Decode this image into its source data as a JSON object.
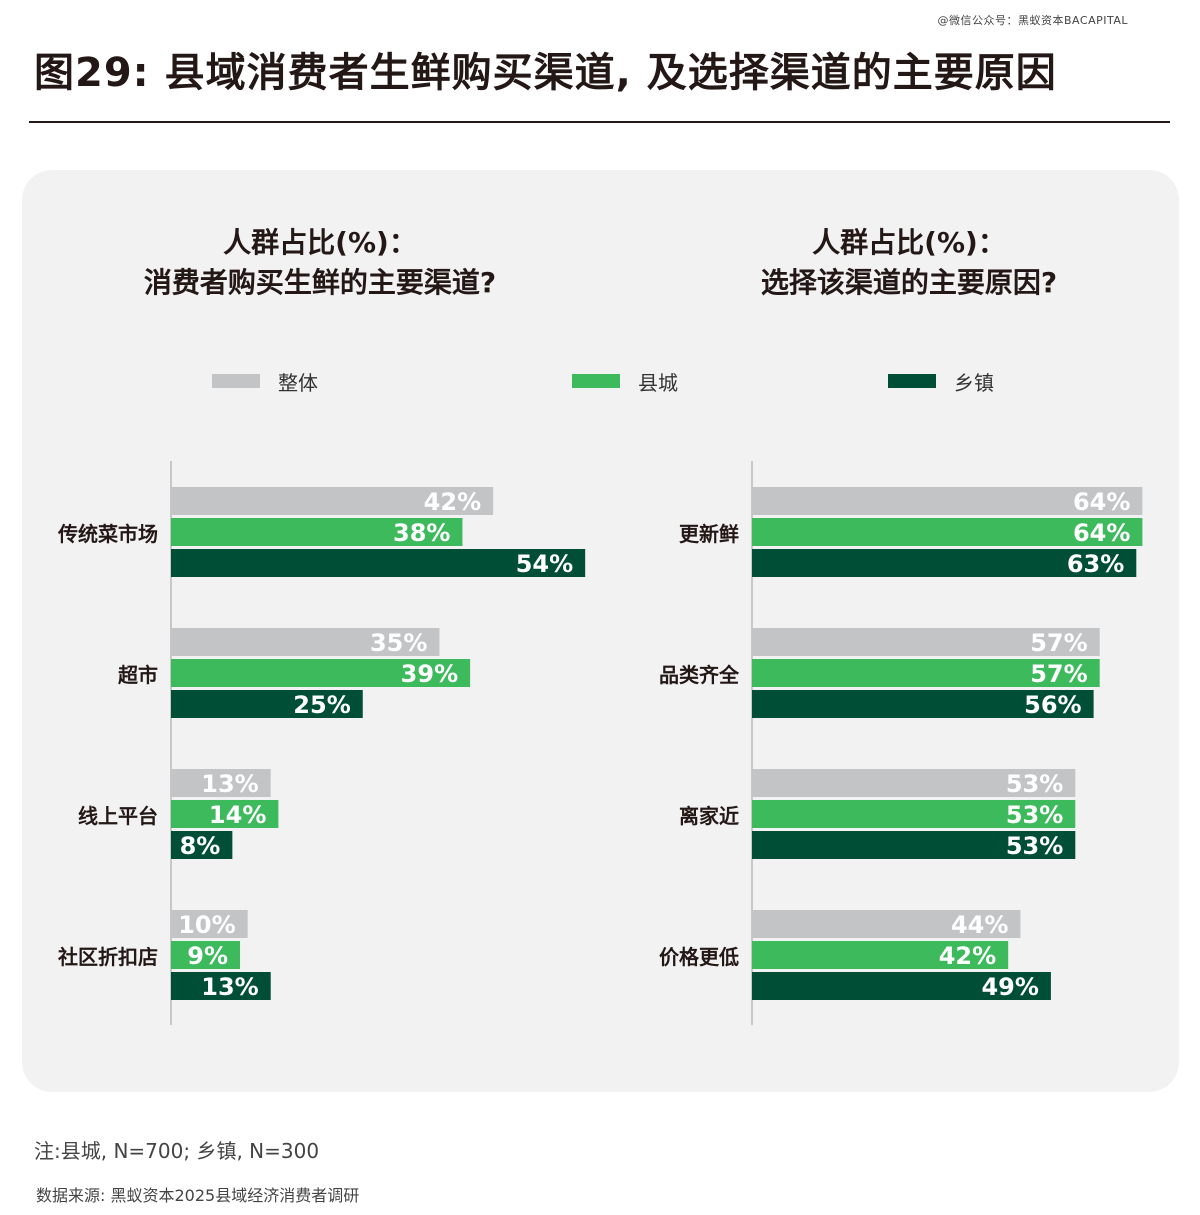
{
  "watermark": "@微信公众号：黑蚁资本BACAPITAL",
  "title": "图29: 县域消费者生鲜购买渠道, 及选择渠道的主要原因",
  "legend": [
    {
      "label": "整体",
      "color": "#c3c4c6"
    },
    {
      "label": "县城",
      "color": "#3dba5c"
    },
    {
      "label": "乡镇",
      "color": "#004e36"
    }
  ],
  "chart_data": [
    {
      "type": "bar",
      "orientation": "horizontal",
      "title_line1": "人群占比(%)：",
      "title_line2": "消费者购买生鲜的主要渠道?",
      "categories": [
        "传统菜市场",
        "超市",
        "线上平台",
        "社区折扣店"
      ],
      "series": [
        {
          "name": "整体",
          "color": "#c3c4c6",
          "values": [
            42,
            35,
            13,
            10
          ]
        },
        {
          "name": "县城",
          "color": "#3dba5c",
          "values": [
            38,
            39,
            14,
            9
          ]
        },
        {
          "name": "乡镇",
          "color": "#004e36",
          "values": [
            54,
            25,
            8,
            13
          ]
        }
      ],
      "unit": "%",
      "grid": false
    },
    {
      "type": "bar",
      "orientation": "horizontal",
      "title_line1": "人群占比(%)：",
      "title_line2": "选择该渠道的主要原因?",
      "categories": [
        "更新鲜",
        "品类齐全",
        "离家近",
        "价格更低"
      ],
      "series": [
        {
          "name": "整体",
          "color": "#c3c4c6",
          "values": [
            64,
            57,
            53,
            44
          ]
        },
        {
          "name": "县城",
          "color": "#3dba5c",
          "values": [
            64,
            57,
            53,
            42
          ]
        },
        {
          "name": "乡镇",
          "color": "#004e36",
          "values": [
            63,
            56,
            53,
            49
          ]
        }
      ],
      "unit": "%",
      "grid": false
    }
  ],
  "note": "注:县城, N=700; 乡镇, N=300",
  "source": "数据来源: 黑蚁资本2025县域经济消费者调研"
}
